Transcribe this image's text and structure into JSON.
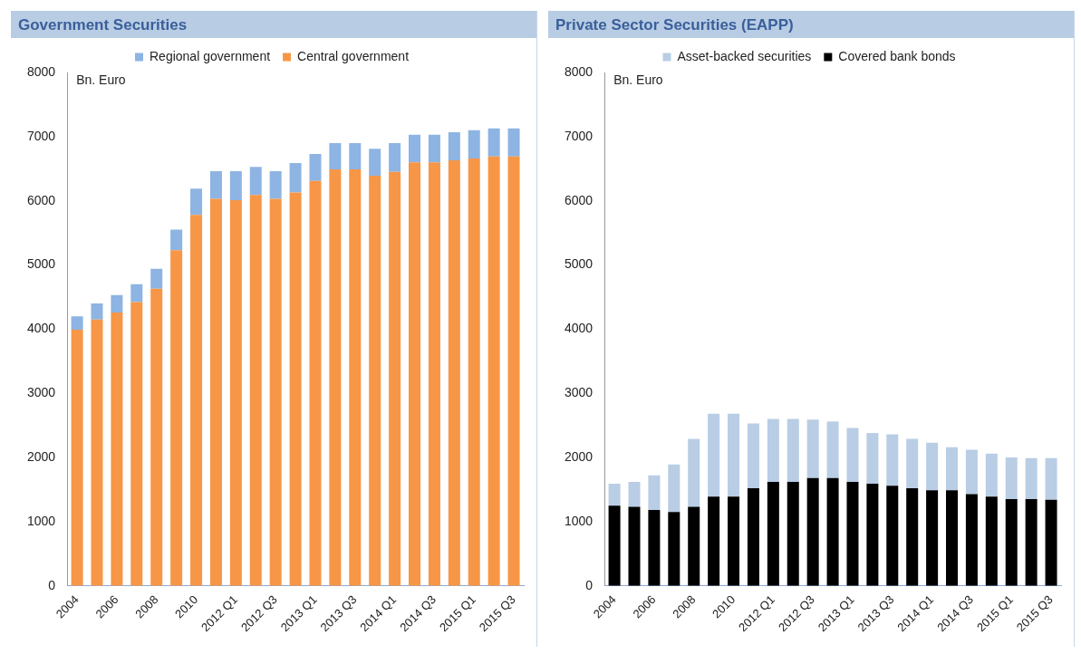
{
  "chart_data": [
    {
      "type": "bar",
      "title": "Government Securities",
      "ylabel": "Bn. Euro",
      "stacked": true,
      "legend": "top",
      "grid": false,
      "categories": [
        "2004",
        null,
        "2006",
        null,
        "2008",
        null,
        "2010",
        null,
        "2012 Q1",
        null,
        "2012 Q3",
        null,
        "2013 Q1",
        null,
        "2013 Q3",
        null,
        "2014 Q1",
        null,
        "2014 Q3",
        null,
        "2015 Q1",
        null,
        "2015 Q3"
      ],
      "ylim": [
        0,
        8000
      ],
      "yticks": [
        0,
        1000,
        2000,
        3000,
        4000,
        5000,
        6000,
        7000,
        8000
      ],
      "series": [
        {
          "name": "Central government",
          "color": "#f79646",
          "values": [
            3990,
            4150,
            4260,
            4420,
            4630,
            5230,
            5780,
            6030,
            6010,
            6090,
            6030,
            6130,
            6310,
            6490,
            6490,
            6390,
            6450,
            6600,
            6600,
            6630,
            6660,
            6690,
            6690
          ]
        },
        {
          "name": "Regional government",
          "color": "#8db4e2",
          "values": [
            210,
            250,
            270,
            280,
            310,
            320,
            410,
            430,
            450,
            440,
            430,
            460,
            420,
            410,
            410,
            420,
            450,
            430,
            430,
            440,
            440,
            440,
            440
          ]
        }
      ]
    },
    {
      "type": "bar",
      "title": "Private Sector Securities (EAPP)",
      "ylabel": "Bn. Euro",
      "stacked": true,
      "legend": "top",
      "grid": false,
      "categories": [
        "2004",
        null,
        "2006",
        null,
        "2008",
        null,
        "2010",
        null,
        "2012 Q1",
        null,
        "2012 Q3",
        null,
        "2013 Q1",
        null,
        "2013 Q3",
        null,
        "2014 Q1",
        null,
        "2014 Q3",
        null,
        "2015 Q1",
        null,
        "2015 Q3"
      ],
      "ylim": [
        0,
        8000
      ],
      "yticks": [
        0,
        1000,
        2000,
        3000,
        4000,
        5000,
        6000,
        7000,
        8000
      ],
      "series": [
        {
          "name": "Covered bank bonds",
          "color": "#000000",
          "values": [
            1250,
            1230,
            1180,
            1150,
            1230,
            1390,
            1390,
            1520,
            1620,
            1620,
            1680,
            1680,
            1620,
            1590,
            1560,
            1520,
            1490,
            1490,
            1430,
            1390,
            1350,
            1350,
            1340
          ]
        },
        {
          "name": "Asset-backed securities",
          "color": "#b9cde5",
          "values": [
            340,
            390,
            540,
            740,
            1060,
            1290,
            1290,
            1010,
            980,
            980,
            910,
            880,
            840,
            790,
            800,
            770,
            740,
            670,
            690,
            670,
            650,
            640,
            650
          ]
        }
      ]
    }
  ]
}
